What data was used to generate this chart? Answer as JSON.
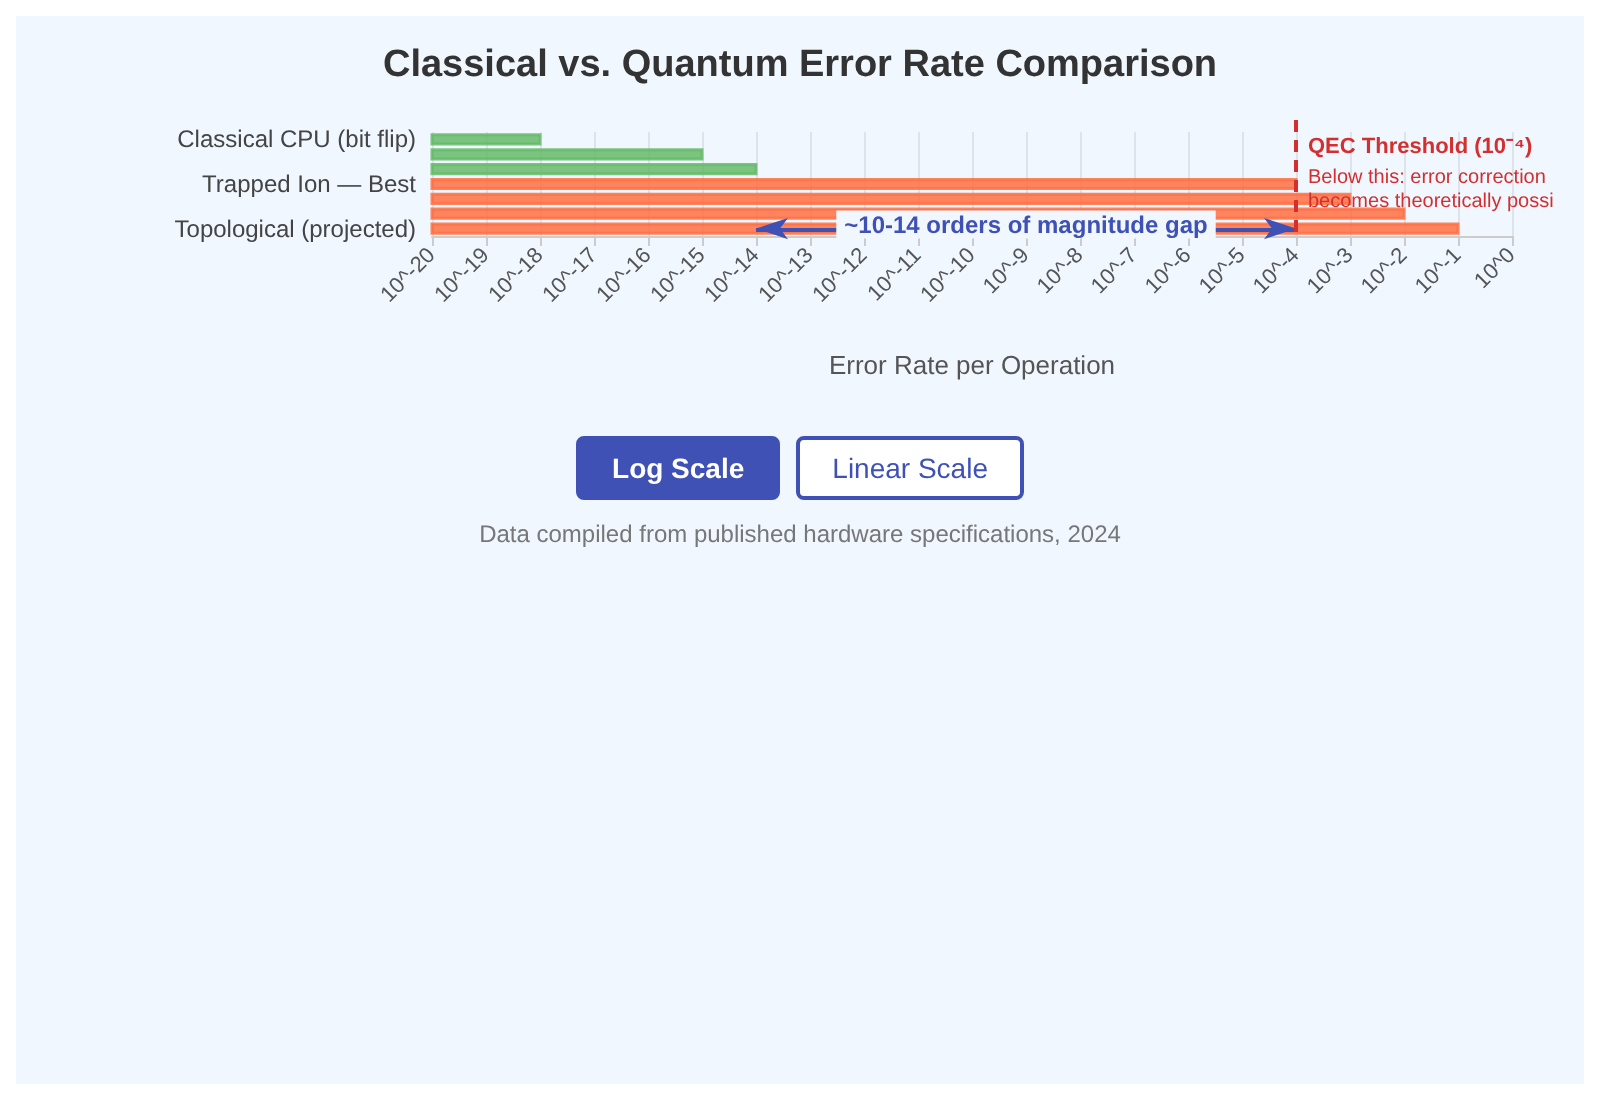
{
  "chart_data": {
    "type": "bar",
    "orientation": "horizontal",
    "title": "Classical vs. Quantum Error Rate Comparison",
    "xlabel": "Error Rate per Operation",
    "categories": [
      "Classical CPU (bit flip)",
      null,
      null,
      "Trapped Ion — Best",
      null,
      null,
      "Topological (projected)"
    ],
    "values": [
      1e-18,
      1e-15,
      1e-14,
      0.0001,
      0.001,
      0.01,
      0.1
    ],
    "colors": [
      "#66bb6a",
      "#66bb6a",
      "#66bb6a",
      "#ff7043",
      "#ff7043",
      "#ff7043",
      "#ff7043"
    ],
    "log": "x",
    "xlim": [
      1e-20,
      1
    ],
    "xticks": [
      {
        "value": 1e-20,
        "label": "10^-20"
      },
      {
        "value": 1e-19,
        "label": "10^-19"
      },
      {
        "value": 1e-18,
        "label": "10^-18"
      },
      {
        "value": 1e-17,
        "label": "10^-17"
      },
      {
        "value": 1e-16,
        "label": "10^-16"
      },
      {
        "value": 1e-15,
        "label": "10^-15"
      },
      {
        "value": 1e-14,
        "label": "10^-14"
      },
      {
        "value": 1e-13,
        "label": "10^-13"
      },
      {
        "value": 1e-12,
        "label": "10^-12"
      },
      {
        "value": 1e-11,
        "label": "10^-11"
      },
      {
        "value": 1e-10,
        "label": "10^-10"
      },
      {
        "value": 1e-09,
        "label": "10^-9"
      },
      {
        "value": 1e-08,
        "label": "10^-8"
      },
      {
        "value": 1e-07,
        "label": "10^-7"
      },
      {
        "value": 1e-06,
        "label": "10^-6"
      },
      {
        "value": 1e-05,
        "label": "10^-5"
      },
      {
        "value": 0.0001,
        "label": "10^-4"
      },
      {
        "value": 0.001,
        "label": "10^-3"
      },
      {
        "value": 0.01,
        "label": "10^-2"
      },
      {
        "value": 0.1,
        "label": "10^-1"
      },
      {
        "value": 1,
        "label": "10^0"
      }
    ],
    "grid": "x",
    "ref_lines": [
      {
        "axis": "x",
        "value": 0.0001,
        "label": "QEC Threshold (10⁻⁴)",
        "color": "#d32f2f",
        "line_style": "dashed"
      }
    ],
    "annotations": [
      {
        "text": "~10-14 orders of magnitude gap",
        "x": 1e-09,
        "y": "Topological (projected)"
      },
      "Below this: error correction becomes theoretically possi",
      "Log Scale",
      "Linear Scale",
      "Data compiled from published hardware specifications, 2024"
    ]
  }
}
